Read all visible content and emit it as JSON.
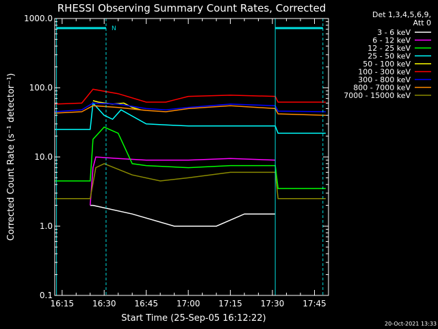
{
  "chart_data": {
    "type": "line",
    "title": "RHESSI Observing Summary Count Rates, Corrected",
    "xlabel": "Start Time (25-Sep-05 16:12:22)",
    "ylabel": "Corrected Count Rate (s⁻¹ detector⁻¹)",
    "ylog": true,
    "ylim": [
      0.1,
      1000
    ],
    "xlim": [
      "16:12:22",
      "17:50"
    ],
    "xticks": [
      "16:15",
      "16:30",
      "16:45",
      "17:00",
      "17:15",
      "17:30",
      "17:45"
    ],
    "yticks": [
      "0.1",
      "1.0",
      "10.0",
      "100.0",
      "1000.0"
    ],
    "legend_header": [
      "Det 1,3,4,5,6,9,",
      "Att 0"
    ],
    "legend_position": "right",
    "series": [
      {
        "name": "3 - 6 keV",
        "color": "#000000",
        "x": [
          "16:25",
          "16:26",
          "16:40",
          "16:55",
          "17:10",
          "17:20",
          "17:31"
        ],
        "y": [
          2,
          2,
          1.5,
          1.0,
          1.0,
          1.5,
          1.5
        ]
      },
      {
        "name": "6 - 12 keV",
        "color": "#ff00ff",
        "x": [
          "16:25",
          "16:26",
          "16:27",
          "16:35",
          "16:45",
          "17:00",
          "17:15",
          "17:31"
        ],
        "y": [
          2,
          7,
          10,
          9.5,
          9,
          9,
          9.5,
          9
        ]
      },
      {
        "name": "12 - 25 keV",
        "color": "#00ff00",
        "x": [
          "16:12:22",
          "16:25",
          "16:26",
          "16:30",
          "16:35",
          "16:40",
          "16:45",
          "17:00",
          "17:15",
          "17:31",
          "17:32",
          "17:49"
        ],
        "y": [
          4.5,
          4.5,
          18,
          27,
          22,
          8,
          7.5,
          7,
          7.5,
          7.5,
          3.5,
          3.5
        ]
      },
      {
        "name": "25 - 50 keV",
        "color": "#00ffff",
        "x": [
          "16:12:22",
          "16:25",
          "16:26",
          "16:30",
          "16:33",
          "16:36",
          "16:45",
          "17:00",
          "17:15",
          "17:31",
          "17:32",
          "17:49"
        ],
        "y": [
          25,
          25,
          60,
          40,
          35,
          48,
          30,
          28,
          28,
          28,
          22,
          22
        ]
      },
      {
        "name": "50 - 100 keV",
        "color": "#ffff00",
        "x": [
          "16:26",
          "16:28",
          "16:33",
          "16:37",
          "16:40",
          "16:43"
        ],
        "y": [
          65,
          62,
          58,
          60,
          52,
          48
        ]
      },
      {
        "name": "100 - 300 keV",
        "color": "#ff0000",
        "x": [
          "16:12:22",
          "16:22",
          "16:26",
          "16:35",
          "16:45",
          "16:52",
          "17:00",
          "17:15",
          "17:31",
          "17:32",
          "17:49"
        ],
        "y": [
          58,
          60,
          95,
          82,
          62,
          62,
          75,
          78,
          75,
          62,
          62
        ]
      },
      {
        "name": "300 - 800 keV",
        "color": "#0000ff",
        "x": [
          "16:12:22",
          "16:22",
          "16:26",
          "16:35",
          "16:45",
          "16:52",
          "17:00",
          "17:15",
          "17:31",
          "17:32",
          "17:49"
        ],
        "y": [
          45,
          48,
          60,
          58,
          50,
          48,
          52,
          58,
          55,
          46,
          45
        ]
      },
      {
        "name": "800 - 7000 keV",
        "color": "#ff8c00",
        "x": [
          "16:12:22",
          "16:22",
          "16:26",
          "16:35",
          "16:45",
          "16:52",
          "17:00",
          "17:15",
          "17:31",
          "17:32",
          "17:49"
        ],
        "y": [
          43,
          45,
          55,
          52,
          47,
          45,
          50,
          55,
          50,
          42,
          40
        ]
      },
      {
        "name": "7000 - 15000 keV",
        "color": "#8b8b00",
        "x": [
          "16:12:22",
          "16:25",
          "16:27",
          "16:30",
          "16:40",
          "16:50",
          "17:00",
          "17:15",
          "17:31",
          "17:32",
          "17:49"
        ],
        "y": [
          2.5,
          2.5,
          7,
          8,
          5.5,
          4.5,
          5,
          6,
          6,
          2.5,
          2.5
        ]
      }
    ],
    "annotations": [
      "N"
    ],
    "vertical_lines": [
      "16:13:00",
      "16:30:40",
      "17:31:00",
      "17:48:00"
    ],
    "footer": "20-Oct-2021 13:33"
  }
}
